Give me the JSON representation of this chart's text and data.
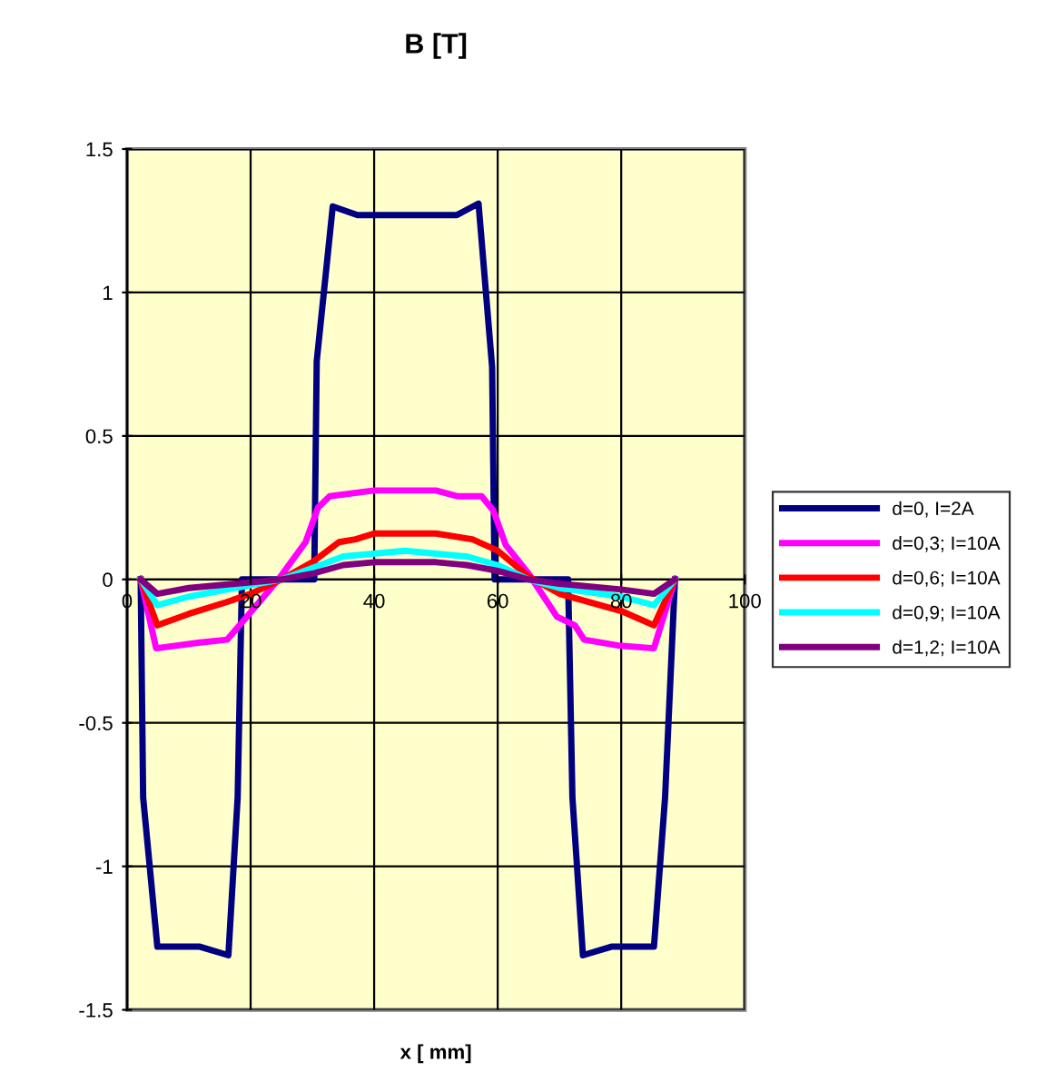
{
  "chart_data": {
    "type": "line",
    "title": "B [T]",
    "xlabel": "x [ mm]",
    "xlim": [
      0,
      100
    ],
    "xticks": [
      0,
      20,
      40,
      60,
      80,
      100
    ],
    "ylim": [
      -1.5,
      1.5
    ],
    "yticks": [
      -1.5,
      -1,
      -0.5,
      0,
      0.5,
      1,
      1.5
    ],
    "grid": true,
    "legend": "right",
    "marker": "none",
    "line_style": "solid",
    "series": [
      {
        "name": "d=0, I=2A",
        "color": "#000080",
        "x": [
          2.2,
          2.6,
          4.9,
          11.8,
          16.4,
          17.9,
          18.6,
          30.3,
          30.7,
          33.3,
          37.3,
          53.4,
          56.9,
          59.1,
          59.5,
          71.4,
          72.1,
          73.8,
          78.4,
          85.3,
          87.1,
          88.7
        ],
        "values": [
          0,
          -0.76,
          -1.28,
          -1.28,
          -1.31,
          -0.76,
          0,
          0,
          0.76,
          1.3,
          1.27,
          1.27,
          1.31,
          0.74,
          0,
          0,
          -0.76,
          -1.31,
          -1.28,
          -1.28,
          -0.76,
          0
        ]
      },
      {
        "name": "d=0,3; I=10A",
        "color": "#ff00ff",
        "x": [
          2.2,
          4.7,
          11.8,
          16.2,
          18.6,
          24.5,
          28.9,
          30.9,
          32.8,
          40,
          50,
          53.4,
          57.4,
          59.3,
          61.3,
          65,
          69.6,
          72.5,
          74,
          79.4,
          85.3,
          88.7
        ],
        "values": [
          0,
          -0.24,
          -0.22,
          -0.21,
          -0.15,
          0,
          0.13,
          0.25,
          0.29,
          0.31,
          0.31,
          0.29,
          0.29,
          0.24,
          0.12,
          0.02,
          -0.13,
          -0.16,
          -0.21,
          -0.23,
          -0.24,
          0
        ]
      },
      {
        "name": "d=0,6; I=10A",
        "color": "#ff0000",
        "x": [
          2.2,
          4.9,
          10,
          16,
          20,
          25,
          30,
          34.3,
          37,
          40,
          50,
          55.9,
          60,
          65,
          70,
          80,
          85.3,
          88.7
        ],
        "values": [
          0,
          -0.16,
          -0.12,
          -0.08,
          -0.05,
          0,
          0.06,
          0.13,
          0.14,
          0.16,
          0.16,
          0.14,
          0.1,
          0.01,
          -0.05,
          -0.11,
          -0.16,
          0
        ]
      },
      {
        "name": "d=0,9; I=10A",
        "color": "#00ffff",
        "x": [
          2.2,
          4.9,
          10,
          20,
          25,
          30,
          35,
          45,
          55,
          60,
          65,
          70,
          80,
          85.3,
          88.7
        ],
        "values": [
          0,
          -0.09,
          -0.06,
          -0.02,
          0,
          0.04,
          0.08,
          0.1,
          0.08,
          0.05,
          0,
          -0.03,
          -0.06,
          -0.09,
          0
        ]
      },
      {
        "name": "d=1,2; I=10A",
        "color": "#800080",
        "x": [
          2.2,
          4.9,
          10,
          20,
          25,
          30,
          35,
          40,
          50,
          55,
          60,
          65,
          70,
          80,
          85.3,
          88.7
        ],
        "values": [
          0,
          -0.05,
          -0.03,
          -0.01,
          0,
          0.02,
          0.05,
          0.06,
          0.06,
          0.05,
          0.03,
          0,
          -0.015,
          -0.035,
          -0.05,
          0
        ]
      }
    ]
  }
}
